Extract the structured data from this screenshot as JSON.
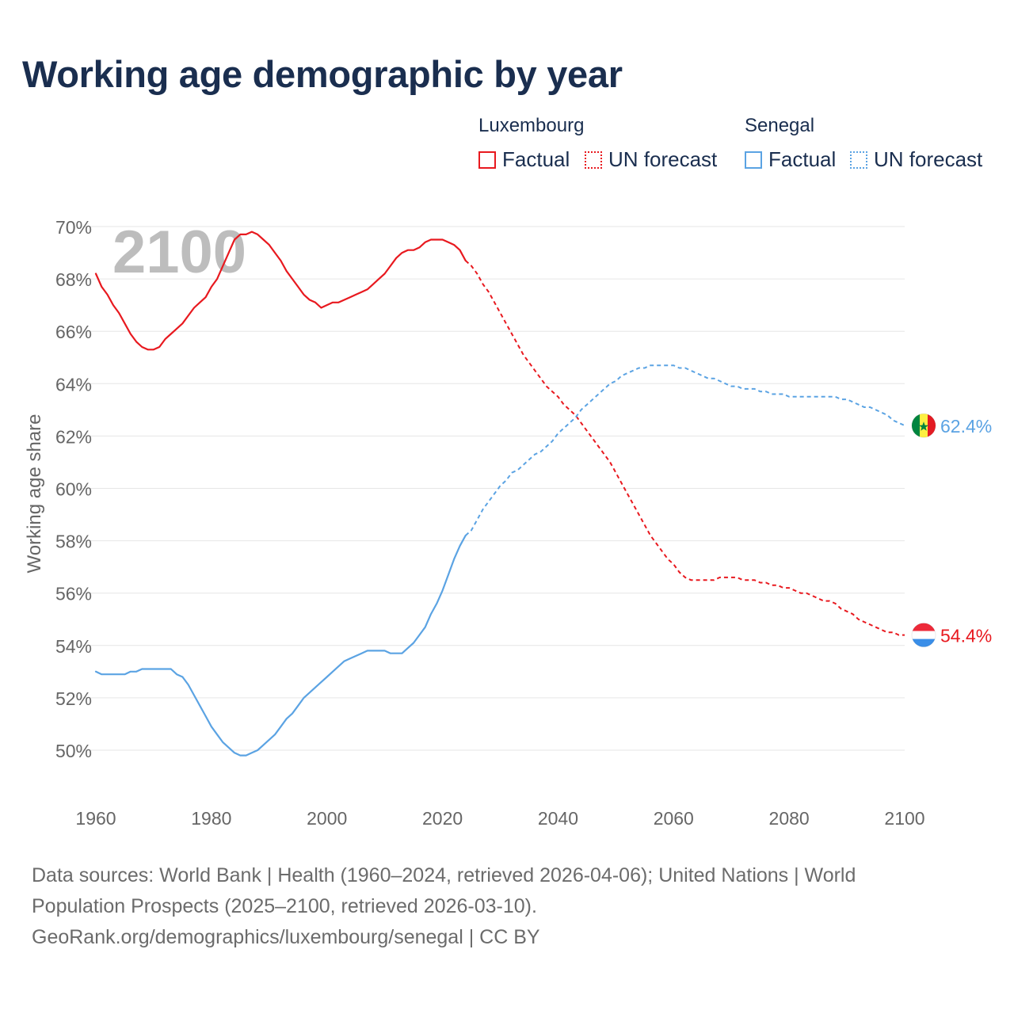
{
  "title": "Working age demographic by year",
  "legend": {
    "groups": [
      {
        "name": "Luxembourg",
        "color": "#e8191f",
        "factual_label": "Factual",
        "forecast_label": "UN forecast"
      },
      {
        "name": "Senegal",
        "color": "#5ba3e3",
        "factual_label": "Factual",
        "forecast_label": "UN forecast"
      }
    ]
  },
  "year_overlay": "2100",
  "sources": {
    "line1": "Data sources: World Bank | Health (1960–2024, retrieved 2026-04-06); United Nations | World",
    "line2": "Population Prospects (2025–2100, retrieved 2026-03-10).",
    "line3": "GeoRank.org/demographics/luxembourg/senegal | CC BY"
  },
  "chart_data": {
    "type": "line",
    "title": "Working age demographic by year",
    "xlabel": "",
    "ylabel": "Working age share",
    "xlim": [
      1960,
      2100
    ],
    "ylim": [
      48,
      70
    ],
    "x_ticks": [
      1960,
      1980,
      2000,
      2020,
      2040,
      2060,
      2080,
      2100
    ],
    "x_tick_labels": [
      "1960",
      "1980",
      "2000",
      "2020",
      "2040",
      "2060",
      "2080",
      "2100"
    ],
    "y_ticks": [
      50,
      52,
      54,
      56,
      58,
      60,
      62,
      64,
      66,
      68,
      70
    ],
    "y_tick_labels": [
      "50%",
      "52%",
      "54%",
      "56%",
      "58%",
      "60%",
      "62%",
      "64%",
      "66%",
      "68%",
      "70%"
    ],
    "factual_end_year": 2024,
    "series": [
      {
        "name": "Luxembourg",
        "color": "#e8191f",
        "end_label": "54.4%",
        "points": [
          [
            1960,
            68.2
          ],
          [
            1961,
            67.7
          ],
          [
            1962,
            67.4
          ],
          [
            1963,
            67.0
          ],
          [
            1964,
            66.7
          ],
          [
            1965,
            66.3
          ],
          [
            1966,
            65.9
          ],
          [
            1967,
            65.6
          ],
          [
            1968,
            65.4
          ],
          [
            1969,
            65.3
          ],
          [
            1970,
            65.3
          ],
          [
            1971,
            65.4
          ],
          [
            1972,
            65.7
          ],
          [
            1973,
            65.9
          ],
          [
            1974,
            66.1
          ],
          [
            1975,
            66.3
          ],
          [
            1976,
            66.6
          ],
          [
            1977,
            66.9
          ],
          [
            1978,
            67.1
          ],
          [
            1979,
            67.3
          ],
          [
            1980,
            67.7
          ],
          [
            1981,
            68.0
          ],
          [
            1982,
            68.5
          ],
          [
            1983,
            69.0
          ],
          [
            1984,
            69.5
          ],
          [
            1985,
            69.7
          ],
          [
            1986,
            69.7
          ],
          [
            1987,
            69.8
          ],
          [
            1988,
            69.7
          ],
          [
            1989,
            69.5
          ],
          [
            1990,
            69.3
          ],
          [
            1991,
            69.0
          ],
          [
            1992,
            68.7
          ],
          [
            1993,
            68.3
          ],
          [
            1994,
            68.0
          ],
          [
            1995,
            67.7
          ],
          [
            1996,
            67.4
          ],
          [
            1997,
            67.2
          ],
          [
            1998,
            67.1
          ],
          [
            1999,
            66.9
          ],
          [
            2000,
            67.0
          ],
          [
            2001,
            67.1
          ],
          [
            2002,
            67.1
          ],
          [
            2003,
            67.2
          ],
          [
            2004,
            67.3
          ],
          [
            2005,
            67.4
          ],
          [
            2006,
            67.5
          ],
          [
            2007,
            67.6
          ],
          [
            2008,
            67.8
          ],
          [
            2009,
            68.0
          ],
          [
            2010,
            68.2
          ],
          [
            2011,
            68.5
          ],
          [
            2012,
            68.8
          ],
          [
            2013,
            69.0
          ],
          [
            2014,
            69.1
          ],
          [
            2015,
            69.1
          ],
          [
            2016,
            69.2
          ],
          [
            2017,
            69.4
          ],
          [
            2018,
            69.5
          ],
          [
            2019,
            69.5
          ],
          [
            2020,
            69.5
          ],
          [
            2021,
            69.4
          ],
          [
            2022,
            69.3
          ],
          [
            2023,
            69.1
          ],
          [
            2024,
            68.7
          ],
          [
            2025,
            68.5
          ],
          [
            2026,
            68.2
          ],
          [
            2027,
            67.8
          ],
          [
            2028,
            67.5
          ],
          [
            2029,
            67.1
          ],
          [
            2030,
            66.7
          ],
          [
            2031,
            66.3
          ],
          [
            2032,
            65.9
          ],
          [
            2033,
            65.5
          ],
          [
            2034,
            65.1
          ],
          [
            2035,
            64.8
          ],
          [
            2036,
            64.5
          ],
          [
            2037,
            64.2
          ],
          [
            2038,
            63.9
          ],
          [
            2039,
            63.7
          ],
          [
            2040,
            63.5
          ],
          [
            2041,
            63.2
          ],
          [
            2042,
            63.0
          ],
          [
            2043,
            62.8
          ],
          [
            2044,
            62.5
          ],
          [
            2045,
            62.2
          ],
          [
            2046,
            61.9
          ],
          [
            2047,
            61.6
          ],
          [
            2048,
            61.3
          ],
          [
            2049,
            61.0
          ],
          [
            2050,
            60.6
          ],
          [
            2051,
            60.2
          ],
          [
            2052,
            59.8
          ],
          [
            2053,
            59.4
          ],
          [
            2054,
            59.0
          ],
          [
            2055,
            58.6
          ],
          [
            2056,
            58.2
          ],
          [
            2057,
            57.9
          ],
          [
            2058,
            57.6
          ],
          [
            2059,
            57.3
          ],
          [
            2060,
            57.1
          ],
          [
            2061,
            56.8
          ],
          [
            2062,
            56.6
          ],
          [
            2063,
            56.5
          ],
          [
            2064,
            56.5
          ],
          [
            2065,
            56.5
          ],
          [
            2066,
            56.5
          ],
          [
            2067,
            56.5
          ],
          [
            2068,
            56.6
          ],
          [
            2069,
            56.6
          ],
          [
            2070,
            56.6
          ],
          [
            2071,
            56.6
          ],
          [
            2072,
            56.5
          ],
          [
            2073,
            56.5
          ],
          [
            2074,
            56.5
          ],
          [
            2075,
            56.4
          ],
          [
            2076,
            56.4
          ],
          [
            2077,
            56.3
          ],
          [
            2078,
            56.3
          ],
          [
            2079,
            56.2
          ],
          [
            2080,
            56.2
          ],
          [
            2081,
            56.1
          ],
          [
            2082,
            56.0
          ],
          [
            2083,
            56.0
          ],
          [
            2084,
            55.9
          ],
          [
            2085,
            55.8
          ],
          [
            2086,
            55.7
          ],
          [
            2087,
            55.7
          ],
          [
            2088,
            55.6
          ],
          [
            2089,
            55.4
          ],
          [
            2090,
            55.3
          ],
          [
            2091,
            55.2
          ],
          [
            2092,
            55.0
          ],
          [
            2093,
            54.9
          ],
          [
            2094,
            54.8
          ],
          [
            2095,
            54.7
          ],
          [
            2096,
            54.6
          ],
          [
            2097,
            54.5
          ],
          [
            2098,
            54.5
          ],
          [
            2099,
            54.4
          ],
          [
            2100,
            54.4
          ]
        ]
      },
      {
        "name": "Senegal",
        "color": "#5ba3e3",
        "end_label": "62.4%",
        "points": [
          [
            1960,
            53.0
          ],
          [
            1961,
            52.9
          ],
          [
            1962,
            52.9
          ],
          [
            1963,
            52.9
          ],
          [
            1964,
            52.9
          ],
          [
            1965,
            52.9
          ],
          [
            1966,
            53.0
          ],
          [
            1967,
            53.0
          ],
          [
            1968,
            53.1
          ],
          [
            1969,
            53.1
          ],
          [
            1970,
            53.1
          ],
          [
            1971,
            53.1
          ],
          [
            1972,
            53.1
          ],
          [
            1973,
            53.1
          ],
          [
            1974,
            52.9
          ],
          [
            1975,
            52.8
          ],
          [
            1976,
            52.5
          ],
          [
            1977,
            52.1
          ],
          [
            1978,
            51.7
          ],
          [
            1979,
            51.3
          ],
          [
            1980,
            50.9
          ],
          [
            1981,
            50.6
          ],
          [
            1982,
            50.3
          ],
          [
            1983,
            50.1
          ],
          [
            1984,
            49.9
          ],
          [
            1985,
            49.8
          ],
          [
            1986,
            49.8
          ],
          [
            1987,
            49.9
          ],
          [
            1988,
            50.0
          ],
          [
            1989,
            50.2
          ],
          [
            1990,
            50.4
          ],
          [
            1991,
            50.6
          ],
          [
            1992,
            50.9
          ],
          [
            1993,
            51.2
          ],
          [
            1994,
            51.4
          ],
          [
            1995,
            51.7
          ],
          [
            1996,
            52.0
          ],
          [
            1997,
            52.2
          ],
          [
            1998,
            52.4
          ],
          [
            1999,
            52.6
          ],
          [
            2000,
            52.8
          ],
          [
            2001,
            53.0
          ],
          [
            2002,
            53.2
          ],
          [
            2003,
            53.4
          ],
          [
            2004,
            53.5
          ],
          [
            2005,
            53.6
          ],
          [
            2006,
            53.7
          ],
          [
            2007,
            53.8
          ],
          [
            2008,
            53.8
          ],
          [
            2009,
            53.8
          ],
          [
            2010,
            53.8
          ],
          [
            2011,
            53.7
          ],
          [
            2012,
            53.7
          ],
          [
            2013,
            53.7
          ],
          [
            2014,
            53.9
          ],
          [
            2015,
            54.1
          ],
          [
            2016,
            54.4
          ],
          [
            2017,
            54.7
          ],
          [
            2018,
            55.2
          ],
          [
            2019,
            55.6
          ],
          [
            2020,
            56.1
          ],
          [
            2021,
            56.7
          ],
          [
            2022,
            57.3
          ],
          [
            2023,
            57.8
          ],
          [
            2024,
            58.2
          ],
          [
            2025,
            58.4
          ],
          [
            2026,
            58.8
          ],
          [
            2027,
            59.2
          ],
          [
            2028,
            59.5
          ],
          [
            2029,
            59.8
          ],
          [
            2030,
            60.1
          ],
          [
            2031,
            60.3
          ],
          [
            2032,
            60.6
          ],
          [
            2033,
            60.7
          ],
          [
            2034,
            60.9
          ],
          [
            2035,
            61.1
          ],
          [
            2036,
            61.3
          ],
          [
            2037,
            61.4
          ],
          [
            2038,
            61.6
          ],
          [
            2039,
            61.8
          ],
          [
            2040,
            62.1
          ],
          [
            2041,
            62.3
          ],
          [
            2042,
            62.5
          ],
          [
            2043,
            62.7
          ],
          [
            2044,
            63.0
          ],
          [
            2045,
            63.2
          ],
          [
            2046,
            63.4
          ],
          [
            2047,
            63.6
          ],
          [
            2048,
            63.8
          ],
          [
            2049,
            64.0
          ],
          [
            2050,
            64.1
          ],
          [
            2051,
            64.3
          ],
          [
            2052,
            64.4
          ],
          [
            2053,
            64.5
          ],
          [
            2054,
            64.6
          ],
          [
            2055,
            64.6
          ],
          [
            2056,
            64.7
          ],
          [
            2057,
            64.7
          ],
          [
            2058,
            64.7
          ],
          [
            2059,
            64.7
          ],
          [
            2060,
            64.7
          ],
          [
            2061,
            64.6
          ],
          [
            2062,
            64.6
          ],
          [
            2063,
            64.5
          ],
          [
            2064,
            64.4
          ],
          [
            2065,
            64.3
          ],
          [
            2066,
            64.2
          ],
          [
            2067,
            64.2
          ],
          [
            2068,
            64.1
          ],
          [
            2069,
            64.0
          ],
          [
            2070,
            63.9
          ],
          [
            2071,
            63.9
          ],
          [
            2072,
            63.8
          ],
          [
            2073,
            63.8
          ],
          [
            2074,
            63.8
          ],
          [
            2075,
            63.7
          ],
          [
            2076,
            63.7
          ],
          [
            2077,
            63.6
          ],
          [
            2078,
            63.6
          ],
          [
            2079,
            63.6
          ],
          [
            2080,
            63.5
          ],
          [
            2081,
            63.5
          ],
          [
            2082,
            63.5
          ],
          [
            2083,
            63.5
          ],
          [
            2084,
            63.5
          ],
          [
            2085,
            63.5
          ],
          [
            2086,
            63.5
          ],
          [
            2087,
            63.5
          ],
          [
            2088,
            63.5
          ],
          [
            2089,
            63.4
          ],
          [
            2090,
            63.4
          ],
          [
            2091,
            63.3
          ],
          [
            2092,
            63.2
          ],
          [
            2093,
            63.1
          ],
          [
            2094,
            63.1
          ],
          [
            2095,
            63.0
          ],
          [
            2096,
            62.9
          ],
          [
            2097,
            62.8
          ],
          [
            2098,
            62.6
          ],
          [
            2099,
            62.5
          ],
          [
            2100,
            62.4
          ]
        ]
      }
    ]
  }
}
